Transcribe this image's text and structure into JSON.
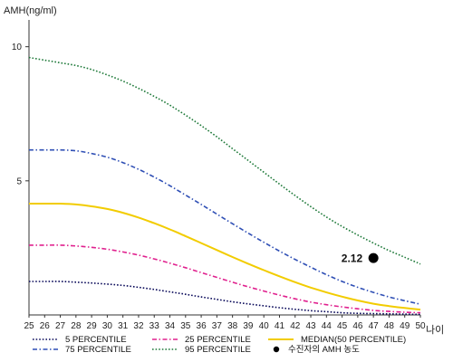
{
  "chart_data": {
    "type": "line",
    "ylabel": "AMH(ng/ml)",
    "xlabel": "나이",
    "x": [
      25,
      26,
      27,
      28,
      29,
      30,
      31,
      32,
      33,
      34,
      35,
      36,
      37,
      38,
      39,
      40,
      41,
      42,
      43,
      44,
      45,
      46,
      47,
      48,
      49,
      50
    ],
    "xlim": [
      25,
      50
    ],
    "ylim": [
      0,
      11
    ],
    "yticks": [
      5,
      10
    ],
    "grid": false,
    "legend_position": "bottom",
    "series": [
      {
        "name": "5 PERCENTILE",
        "color": "#0a0a5a",
        "style": "dotted",
        "values": [
          1.25,
          1.25,
          1.25,
          1.22,
          1.19,
          1.15,
          1.1,
          1.03,
          0.95,
          0.86,
          0.77,
          0.67,
          0.58,
          0.49,
          0.41,
          0.34,
          0.27,
          0.21,
          0.16,
          0.12,
          0.08,
          0.06,
          0.05,
          0.04,
          0.03,
          0.02
        ]
      },
      {
        "name": "25 PERCENTILE",
        "color": "#e0208e",
        "style": "dashdot",
        "values": [
          2.6,
          2.6,
          2.6,
          2.57,
          2.52,
          2.45,
          2.35,
          2.23,
          2.09,
          1.93,
          1.76,
          1.58,
          1.4,
          1.22,
          1.05,
          0.89,
          0.74,
          0.6,
          0.48,
          0.38,
          0.3,
          0.23,
          0.17,
          0.13,
          0.1,
          0.08
        ]
      },
      {
        "name": "MEDIAN(50 PERCENTILE)",
        "color": "#f2cc00",
        "style": "solid",
        "values": [
          4.15,
          4.15,
          4.15,
          4.12,
          4.05,
          3.95,
          3.81,
          3.63,
          3.42,
          3.19,
          2.94,
          2.68,
          2.42,
          2.16,
          1.91,
          1.67,
          1.44,
          1.22,
          1.02,
          0.84,
          0.68,
          0.54,
          0.42,
          0.33,
          0.26,
          0.2
        ]
      },
      {
        "name": "75 PERCENTILE",
        "color": "#2f4fb5",
        "style": "dashdot",
        "values": [
          6.15,
          6.15,
          6.15,
          6.12,
          6.02,
          5.88,
          5.68,
          5.43,
          5.14,
          4.82,
          4.47,
          4.12,
          3.76,
          3.4,
          3.05,
          2.71,
          2.38,
          2.07,
          1.78,
          1.5,
          1.25,
          1.03,
          0.84,
          0.67,
          0.53,
          0.4
        ]
      },
      {
        "name": "95 PERCENTILE",
        "color": "#1f7a3a",
        "style": "dotted",
        "values": [
          9.6,
          9.5,
          9.4,
          9.3,
          9.15,
          8.95,
          8.72,
          8.45,
          8.15,
          7.82,
          7.45,
          7.06,
          6.64,
          6.2,
          5.76,
          5.32,
          4.88,
          4.45,
          4.04,
          3.65,
          3.3,
          2.98,
          2.68,
          2.4,
          2.15,
          1.9
        ]
      }
    ],
    "marker": {
      "name": "수진자의 AMH 농도",
      "x": 47,
      "y": 2.12,
      "label": "2.12",
      "color": "#000000"
    },
    "legend": [
      {
        "name": "5 PERCENTILE",
        "color": "#0a0a5a",
        "style": "dotted"
      },
      {
        "name": "25 PERCENTILE",
        "color": "#e0208e",
        "style": "dashdot"
      },
      {
        "name": "MEDIAN(50 PERCENTILE)",
        "color": "#f2cc00",
        "style": "solid"
      },
      {
        "name": "75 PERCENTILE",
        "color": "#2f4fb5",
        "style": "dashdot"
      },
      {
        "name": "95 PERCENTILE",
        "color": "#1f7a3a",
        "style": "dotted"
      },
      {
        "name": "수진자의 AMH 농도",
        "color": "#000000",
        "style": "marker"
      }
    ]
  }
}
